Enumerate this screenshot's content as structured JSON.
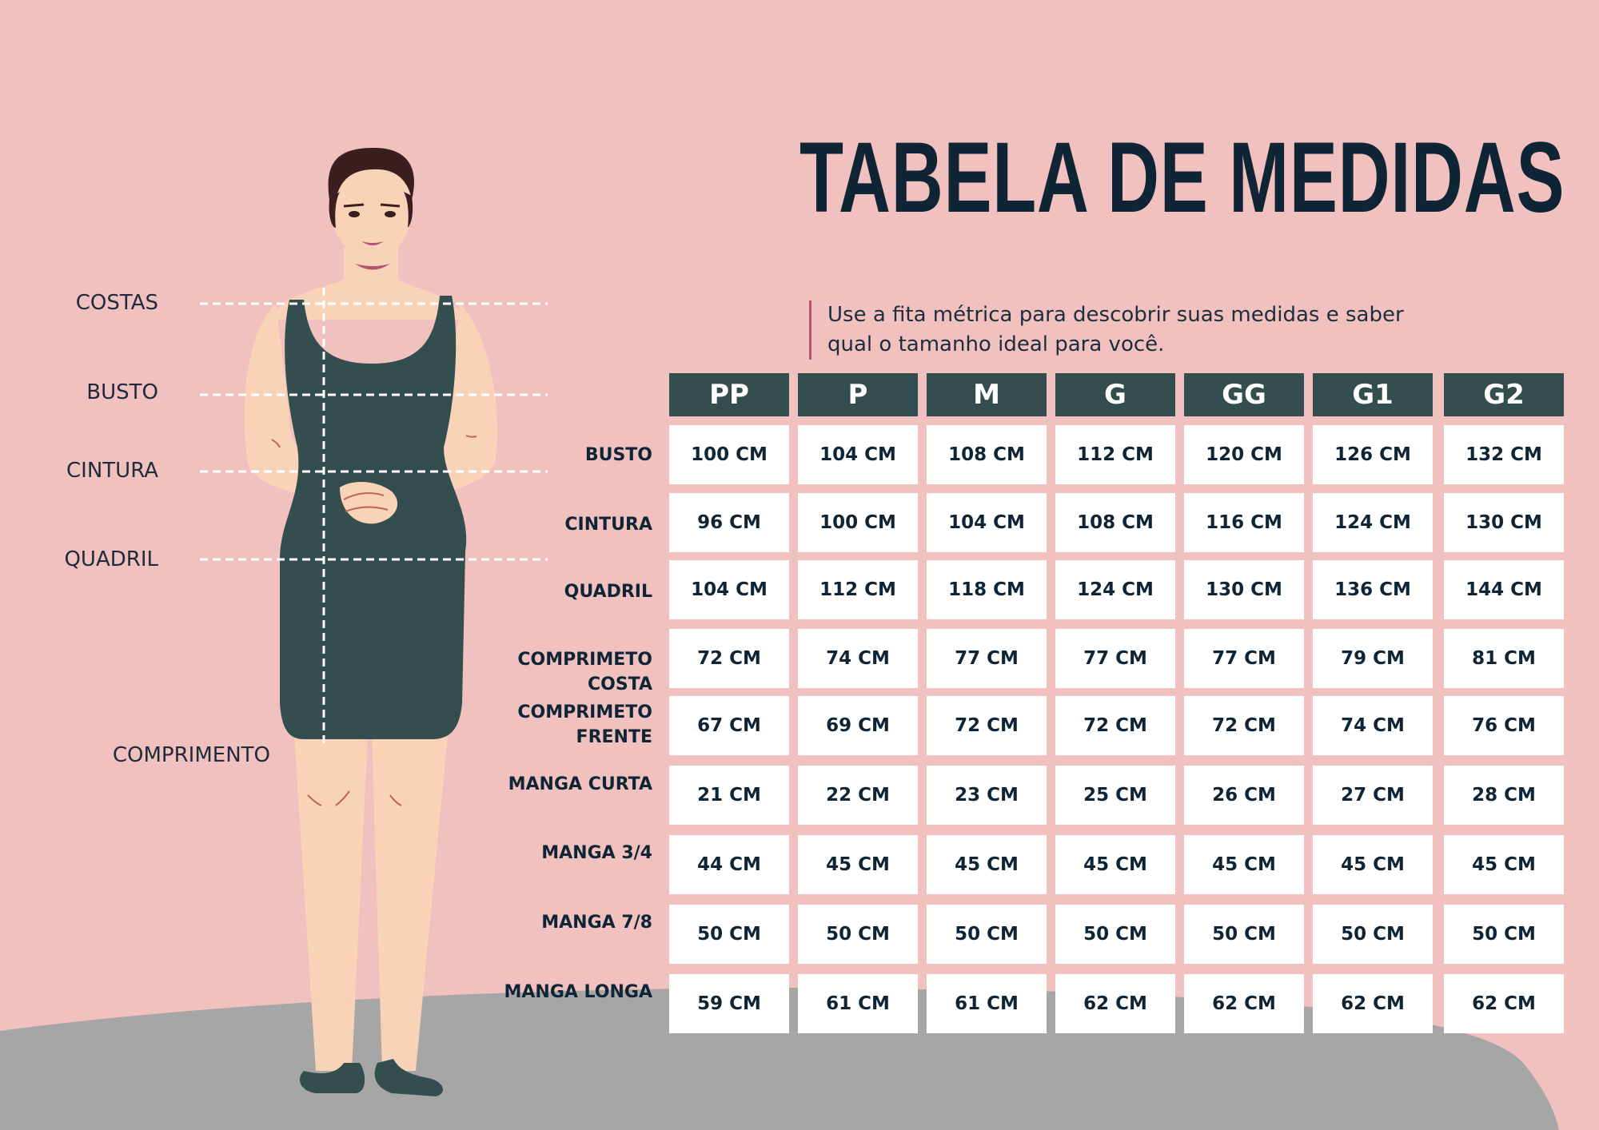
{
  "title": "TABELA DE MEDIDAS",
  "subtitle": "Use a fita métrica para descobrir suas medidas e saber qual o tamanho ideal para você.",
  "figure_labels": {
    "costas": "COSTAS",
    "busto": "BUSTO",
    "cintura": "CINTURA",
    "quadril": "QUADRIL",
    "comprimento": "COMPRIMENTO"
  },
  "table": {
    "sizes": [
      "PP",
      "P",
      "M",
      "G",
      "GG",
      "G1",
      "G2"
    ],
    "rows": [
      {
        "label": "BUSTO",
        "values": [
          "100 CM",
          "104 CM",
          "108 CM",
          "112 CM",
          "120 CM",
          "126 CM",
          "132 CM"
        ]
      },
      {
        "label": "CINTURA",
        "values": [
          "96 CM",
          "100 CM",
          "104 CM",
          "108 CM",
          "116 CM",
          "124 CM",
          "130 CM"
        ]
      },
      {
        "label": "QUADRIL",
        "values": [
          "104 CM",
          "112 CM",
          "118 CM",
          "124 CM",
          "130 CM",
          "136 CM",
          "144 CM"
        ]
      },
      {
        "label": "COMPRIMETO\nCOSTA",
        "values": [
          "72 CM",
          "74 CM",
          "77 CM",
          "77 CM",
          "77 CM",
          "79 CM",
          "81 CM"
        ]
      },
      {
        "label": "COMPRIMETO\nFRENTE",
        "values": [
          "67 CM",
          "69 CM",
          "72 CM",
          "72 CM",
          "72 CM",
          "74 CM",
          "76 CM"
        ]
      },
      {
        "label": "MANGA CURTA",
        "values": [
          "21 CM",
          "22 CM",
          "23 CM",
          "25 CM",
          "26 CM",
          "27 CM",
          "28 CM"
        ]
      },
      {
        "label": "MANGA 3/4",
        "values": [
          "44 CM",
          "45 CM",
          "45 CM",
          "45 CM",
          "45 CM",
          "45 CM",
          "45 CM"
        ]
      },
      {
        "label": "MANGA 7/8",
        "values": [
          "50 CM",
          "50 CM",
          "50 CM",
          "50 CM",
          "50 CM",
          "50 CM",
          "50 CM"
        ]
      },
      {
        "label": "MANGA LONGA",
        "values": [
          "59 CM",
          "61 CM",
          "61 CM",
          "62 CM",
          "62 CM",
          "62 CM",
          "62 CM"
        ]
      }
    ]
  },
  "colors": {
    "background": "#f0c1be",
    "ground": "#a6a6a6",
    "header": "#344d4e",
    "title": "#0f2535",
    "dress": "#344d4e",
    "skin": "#f9d3b8",
    "hair": "#3b1f20"
  }
}
